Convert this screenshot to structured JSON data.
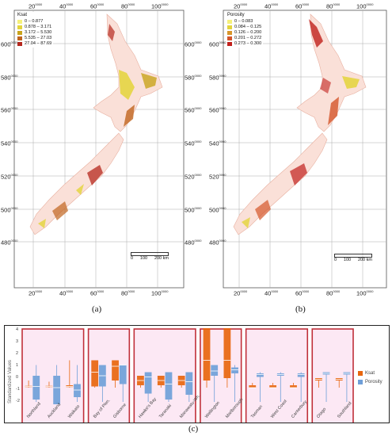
{
  "panel_a": {
    "legend_title": "Ksat",
    "legend": [
      {
        "label": "0  –  0.877",
        "color": "#f5f07a"
      },
      {
        "label": "0.878 – 3.171",
        "color": "#e3d43a"
      },
      {
        "label": "3.172 – 5.530",
        "color": "#c9a41c"
      },
      {
        "label": "5.535 – 27.03",
        "color": "#c0641e"
      },
      {
        "label": "27.04 – 87.69",
        "color": "#b5281e"
      }
    ],
    "caption": "(a)"
  },
  "panel_b": {
    "legend_title": "Porosity",
    "legend": [
      {
        "label": "0  –  0.083",
        "color": "#f5f07a"
      },
      {
        "label": "0.084 – 0.125",
        "color": "#e3d43a"
      },
      {
        "label": "0.126 – 0.200",
        "color": "#d8962a"
      },
      {
        "label": "0.201 – 0.272",
        "color": "#d4552a"
      },
      {
        "label": "0.273 – 0.300",
        "color": "#c1201c"
      }
    ],
    "caption": "(b)"
  },
  "map_axes": {
    "x_ticks": [
      "20",
      "40",
      "60",
      "80",
      "100"
    ],
    "x_sup": "0000",
    "y_ticks": [
      "600",
      "580",
      "560",
      "540",
      "520",
      "500",
      "480"
    ],
    "y_sup": "0000",
    "scale_labels": [
      "0",
      "100",
      "200 km"
    ]
  },
  "chart_data": {
    "type": "box",
    "caption": "(c)",
    "ylabel": "Standardized Values",
    "ylim": [
      -2,
      4
    ],
    "yticks": [
      "4",
      "3",
      "2",
      "1",
      "0",
      "-1",
      "-2"
    ],
    "series": [
      {
        "name": "Ksat",
        "color": "#e8660e"
      },
      {
        "name": "Porosity",
        "color": "#6f9fd8"
      }
    ],
    "groups": [
      {
        "categories": [
          "Northland",
          "Auckland",
          "Waikato"
        ]
      },
      {
        "categories": [
          "Bay of Plen.",
          "Gisborne"
        ]
      },
      {
        "categories": [
          "Hawke's Bay",
          "Taranaki",
          "Manawatu-Wh."
        ]
      },
      {
        "categories": [
          "Wellington",
          "Marlborough"
        ]
      },
      {
        "categories": [
          "Tasman",
          "West Coast",
          "Canterbury"
        ]
      },
      {
        "categories": [
          "Otago",
          "Southland"
        ]
      }
    ],
    "boxes": [
      {
        "cat": "Northland",
        "ksat": [
          -0.8,
          -0.75,
          -0.7,
          -0.65,
          -0.2
        ],
        "por": [
          -2.0,
          -1.8,
          -0.7,
          0.2,
          1.1
        ]
      },
      {
        "cat": "Auckland",
        "ksat": [
          -0.8,
          -0.75,
          -0.7,
          -0.65,
          -0.3
        ],
        "por": [
          -2.0,
          -2.2,
          -0.8,
          0.2,
          1.1
        ]
      },
      {
        "cat": "Waikato",
        "ksat": [
          -0.8,
          -0.75,
          -0.7,
          -0.6,
          1.5
        ],
        "por": [
          -2.0,
          -1.6,
          -1.0,
          -0.5,
          1.1
        ]
      },
      {
        "cat": "Bay of Plen.",
        "ksat": [
          -0.8,
          -0.7,
          0.5,
          1.5,
          1.5
        ],
        "por": [
          -2.0,
          -0.7,
          0.2,
          1.1,
          1.1
        ]
      },
      {
        "cat": "Gisborne",
        "ksat": [
          -0.8,
          -0.2,
          1.0,
          1.5,
          1.5
        ],
        "por": [
          -2.0,
          -0.5,
          1.1,
          1.1,
          1.1
        ]
      },
      {
        "cat": "Hawke's Bay",
        "ksat": [
          -0.8,
          -0.6,
          -0.2,
          0.2,
          0.2
        ],
        "por": [
          -2.0,
          -1.3,
          0.1,
          0.5,
          0.5
        ]
      },
      {
        "cat": "Taranaki",
        "ksat": [
          -0.8,
          -0.6,
          -0.2,
          0.2,
          0.2
        ],
        "por": [
          -2.0,
          -1.8,
          -0.5,
          0.5,
          0.5
        ]
      },
      {
        "cat": "Manawatu-Wh.",
        "ksat": [
          -0.8,
          -0.6,
          -0.2,
          0.2,
          0.2
        ],
        "por": [
          -2.0,
          -1.4,
          -0.3,
          0.5,
          0.5
        ]
      },
      {
        "cat": "Wellington",
        "ksat": [
          -0.8,
          -0.2,
          1.5,
          4.2,
          4.2
        ],
        "por": [
          -2.0,
          0.2,
          0.6,
          1.1,
          1.1
        ]
      },
      {
        "cat": "Marlborough",
        "ksat": [
          -0.8,
          0.0,
          1.5,
          4.2,
          4.2
        ],
        "por": [
          -2.0,
          0.4,
          0.7,
          0.9,
          1.1
        ]
      },
      {
        "cat": "Tasman",
        "ksat": [
          -0.8,
          -0.8,
          -0.8,
          -0.6,
          -0.4
        ],
        "por": [
          -2.0,
          0.1,
          0.3,
          0.4,
          0.5
        ]
      },
      {
        "cat": "West Coast",
        "ksat": [
          -0.8,
          -0.8,
          -0.8,
          -0.6,
          -0.4
        ],
        "por": [
          -2.0,
          0.2,
          0.3,
          0.4,
          0.5
        ]
      },
      {
        "cat": "Canterbury",
        "ksat": [
          -0.8,
          -0.8,
          -0.8,
          -0.6,
          -0.4
        ],
        "por": [
          -2.0,
          0.1,
          0.3,
          0.4,
          0.5
        ]
      },
      {
        "cat": "Otago",
        "ksat": [
          -0.8,
          -0.2,
          -0.1,
          0.0,
          0.0
        ],
        "por": [
          -2.0,
          0.3,
          0.4,
          0.5,
          0.5
        ]
      },
      {
        "cat": "Southland",
        "ksat": [
          -0.8,
          -0.2,
          -0.1,
          0.0,
          0.0
        ],
        "por": [
          -2.0,
          0.3,
          0.4,
          0.5,
          0.5
        ]
      }
    ]
  }
}
